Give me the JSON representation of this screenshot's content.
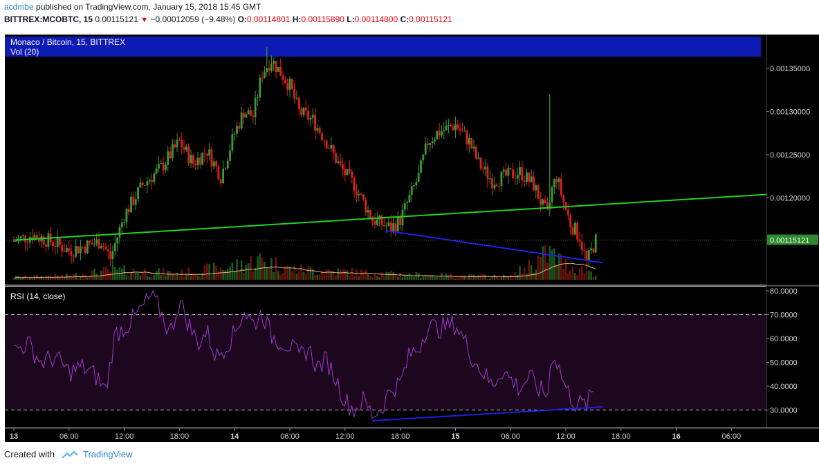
{
  "header": {
    "user": "acdmbe",
    "published_text": "published on TradingView.com, January 15, 2018 15:45 GMT",
    "symbol": "BITTREX:MCOBTC, 15",
    "last": "0.00115121",
    "change": "−0.00012059 (−9.48%)",
    "open_label": "O:",
    "open": "0.00114801",
    "high_label": "H:",
    "high": "0.00115890",
    "low_label": "L:",
    "low": "0.00114800",
    "close_label": "C:",
    "close": "0.00115121"
  },
  "legend": {
    "title": "Monaco / Bitcoin, 15, BITTREX",
    "volume": "Vol (20)",
    "rsi": "RSI (14, close)"
  },
  "colors": {
    "background": "#000000",
    "up": "#3c9a3a",
    "down": "#e0201d",
    "trendline_green": "#21d321",
    "trendline_blue": "#1f1fe8",
    "volume_ma": "#f5b077",
    "rsi_line": "#9a3cc8",
    "rsi_band": "#1d071f",
    "price_tag": "#2e8a2e",
    "legend_bg": "#0d1ab3"
  },
  "chart_data": [
    {
      "type": "candlestick",
      "title": "Monaco / Bitcoin, 15, BITTREX",
      "interval": "15",
      "y_ticks": [
        "0.00135000",
        "0.00130000",
        "0.00125000",
        "0.00120000"
      ],
      "ylim": [
        0.0011,
        0.00138
      ],
      "x_ticks": [
        "13",
        "06:00",
        "12:00",
        "18:00",
        "14",
        "06:00",
        "12:00",
        "18:00",
        "15",
        "06:00",
        "12:00",
        "18:00",
        "16",
        "06:00"
      ],
      "last_price_label": "0.00115121",
      "close_path": [
        [
          "13 00:00",
          0.00115
        ],
        [
          "13 02:00",
          0.001157
        ],
        [
          "13 04:00",
          0.00115
        ],
        [
          "13 06:00",
          0.001139
        ],
        [
          "13 08:00",
          0.001145
        ],
        [
          "13 09:30",
          0.00115
        ],
        [
          "13 10:30",
          0.00113
        ],
        [
          "13 12:00",
          0.00118
        ],
        [
          "13 14:00",
          0.001215
        ],
        [
          "13 16:00",
          0.001235
        ],
        [
          "13 18:00",
          0.001265
        ],
        [
          "13 19:30",
          0.00124
        ],
        [
          "13 21:00",
          0.001255
        ],
        [
          "13 22:30",
          0.001225
        ],
        [
          "14 00:00",
          0.001275
        ],
        [
          "14 01:00",
          0.0013
        ],
        [
          "14 02:00",
          0.001295
        ],
        [
          "14 03:00",
          0.001345
        ],
        [
          "14 04:00",
          0.00136
        ],
        [
          "14 05:00",
          0.001345
        ],
        [
          "14 06:00",
          0.00133
        ],
        [
          "14 07:00",
          0.0013
        ],
        [
          "14 08:30",
          0.00129
        ],
        [
          "14 10:00",
          0.001265
        ],
        [
          "14 11:30",
          0.001235
        ],
        [
          "14 13:00",
          0.001215
        ],
        [
          "14 14:00",
          0.001195
        ],
        [
          "14 15:00",
          0.001175
        ],
        [
          "14 16:00",
          0.00117
        ],
        [
          "14 17:00",
          0.001165
        ],
        [
          "14 18:00",
          0.001175
        ],
        [
          "14 19:00",
          0.0012
        ],
        [
          "14 20:00",
          0.001225
        ],
        [
          "14 21:00",
          0.001265
        ],
        [
          "14 22:00",
          0.001275
        ],
        [
          "15 00:00",
          0.001285
        ],
        [
          "15 01:30",
          0.001265
        ],
        [
          "15 02:30",
          0.00124
        ],
        [
          "15 04:00",
          0.00122
        ],
        [
          "15 05:30",
          0.001225
        ],
        [
          "15 07:00",
          0.00123
        ],
        [
          "15 08:30",
          0.001215
        ],
        [
          "15 09:30",
          0.00119
        ],
        [
          "15 10:00",
          0.00118
        ],
        [
          "15 10:30",
          0.00121
        ],
        [
          "15 11:00",
          0.001225
        ],
        [
          "15 11:45",
          0.001195
        ],
        [
          "15 12:30",
          0.00117
        ],
        [
          "15 13:30",
          0.001155
        ],
        [
          "15 14:15",
          0.001125
        ],
        [
          "15 15:15",
          0.001151
        ]
      ],
      "spikes": [
        {
          "time": "14 03:30",
          "high": 0.001375
        },
        {
          "time": "15 10:15",
          "high": 0.00132
        }
      ],
      "trendlines": [
        {
          "color": "green",
          "from": [
            "13 00:00",
            0.001151
          ],
          "to": [
            "16 10:00",
            0.001204
          ]
        },
        {
          "color": "blue",
          "from": [
            "14 16:30",
            0.001162
          ],
          "to": [
            "15 16:00",
            0.001125
          ]
        }
      ]
    },
    {
      "type": "bar",
      "title": "Vol (20)",
      "series": [
        {
          "name": "Vol (20)"
        }
      ],
      "profile": [
        [
          "13 00:00",
          0.1
        ],
        [
          "13 06:00",
          0.15
        ],
        [
          "13 10:30",
          0.35
        ],
        [
          "13 14:00",
          0.3
        ],
        [
          "13 18:00",
          0.25
        ],
        [
          "14 00:00",
          0.5
        ],
        [
          "14 03:00",
          0.75
        ],
        [
          "14 06:00",
          0.4
        ],
        [
          "14 12:00",
          0.3
        ],
        [
          "14 18:00",
          0.2
        ],
        [
          "15 00:00",
          0.15
        ],
        [
          "15 06:00",
          0.12
        ],
        [
          "15 10:15",
          1.0
        ],
        [
          "15 12:00",
          0.55
        ],
        [
          "15 15:15",
          0.25
        ]
      ]
    },
    {
      "type": "line",
      "title": "RSI (14, close)",
      "series": [
        {
          "name": "RSI (14, close)"
        }
      ],
      "y_ticks": [
        "80.0000",
        "70.0000",
        "60.0000",
        "50.0000",
        "40.0000",
        "30.0000"
      ],
      "ylim": [
        25,
        83
      ],
      "bands": [
        30,
        70
      ],
      "values": [
        [
          "13 00:00",
          55
        ],
        [
          "13 01:30",
          58
        ],
        [
          "13 03:00",
          50
        ],
        [
          "13 04:30",
          52
        ],
        [
          "13 06:00",
          46
        ],
        [
          "13 07:30",
          48
        ],
        [
          "13 09:00",
          44
        ],
        [
          "13 10:00",
          38
        ],
        [
          "13 11:00",
          62
        ],
        [
          "13 12:30",
          66
        ],
        [
          "13 14:00",
          73
        ],
        [
          "13 15:00",
          78
        ],
        [
          "13 16:00",
          71
        ],
        [
          "13 17:00",
          62
        ],
        [
          "13 18:00",
          76
        ],
        [
          "13 19:00",
          66
        ],
        [
          "13 20:00",
          58
        ],
        [
          "13 21:00",
          63
        ],
        [
          "13 22:00",
          52
        ],
        [
          "14 00:00",
          62
        ],
        [
          "14 01:00",
          72
        ],
        [
          "14 02:00",
          66
        ],
        [
          "14 03:00",
          71
        ],
        [
          "14 04:00",
          61
        ],
        [
          "14 05:00",
          59
        ],
        [
          "14 06:00",
          57
        ],
        [
          "14 07:00",
          52
        ],
        [
          "14 08:00",
          56
        ],
        [
          "14 09:00",
          48
        ],
        [
          "14 10:00",
          51
        ],
        [
          "14 11:00",
          43
        ],
        [
          "14 12:00",
          34
        ],
        [
          "14 13:00",
          30
        ],
        [
          "14 14:00",
          34
        ],
        [
          "14 15:00",
          28
        ],
        [
          "14 16:00",
          31
        ],
        [
          "14 17:00",
          39
        ],
        [
          "14 18:00",
          41
        ],
        [
          "14 19:00",
          53
        ],
        [
          "14 20:00",
          56
        ],
        [
          "14 21:00",
          66
        ],
        [
          "14 22:00",
          64
        ],
        [
          "15 00:00",
          66
        ],
        [
          "15 01:00",
          59
        ],
        [
          "15 02:00",
          51
        ],
        [
          "15 03:00",
          46
        ],
        [
          "15 04:00",
          40
        ],
        [
          "15 05:00",
          47
        ],
        [
          "15 06:00",
          43
        ],
        [
          "15 07:00",
          39
        ],
        [
          "15 08:00",
          44
        ],
        [
          "15 09:00",
          39
        ],
        [
          "15 10:00",
          36
        ],
        [
          "15 10:30",
          54
        ],
        [
          "15 11:00",
          51
        ],
        [
          "15 12:00",
          39
        ],
        [
          "15 13:00",
          33
        ],
        [
          "15 14:15",
          32
        ],
        [
          "15 15:15",
          40
        ]
      ],
      "trendline": {
        "color": "blue",
        "from": [
          "14 15:00",
          25.5
        ],
        "to": [
          "15 16:00",
          31.3
        ]
      }
    }
  ],
  "footer": {
    "created_with": "Created with",
    "brand": "TradingView"
  }
}
